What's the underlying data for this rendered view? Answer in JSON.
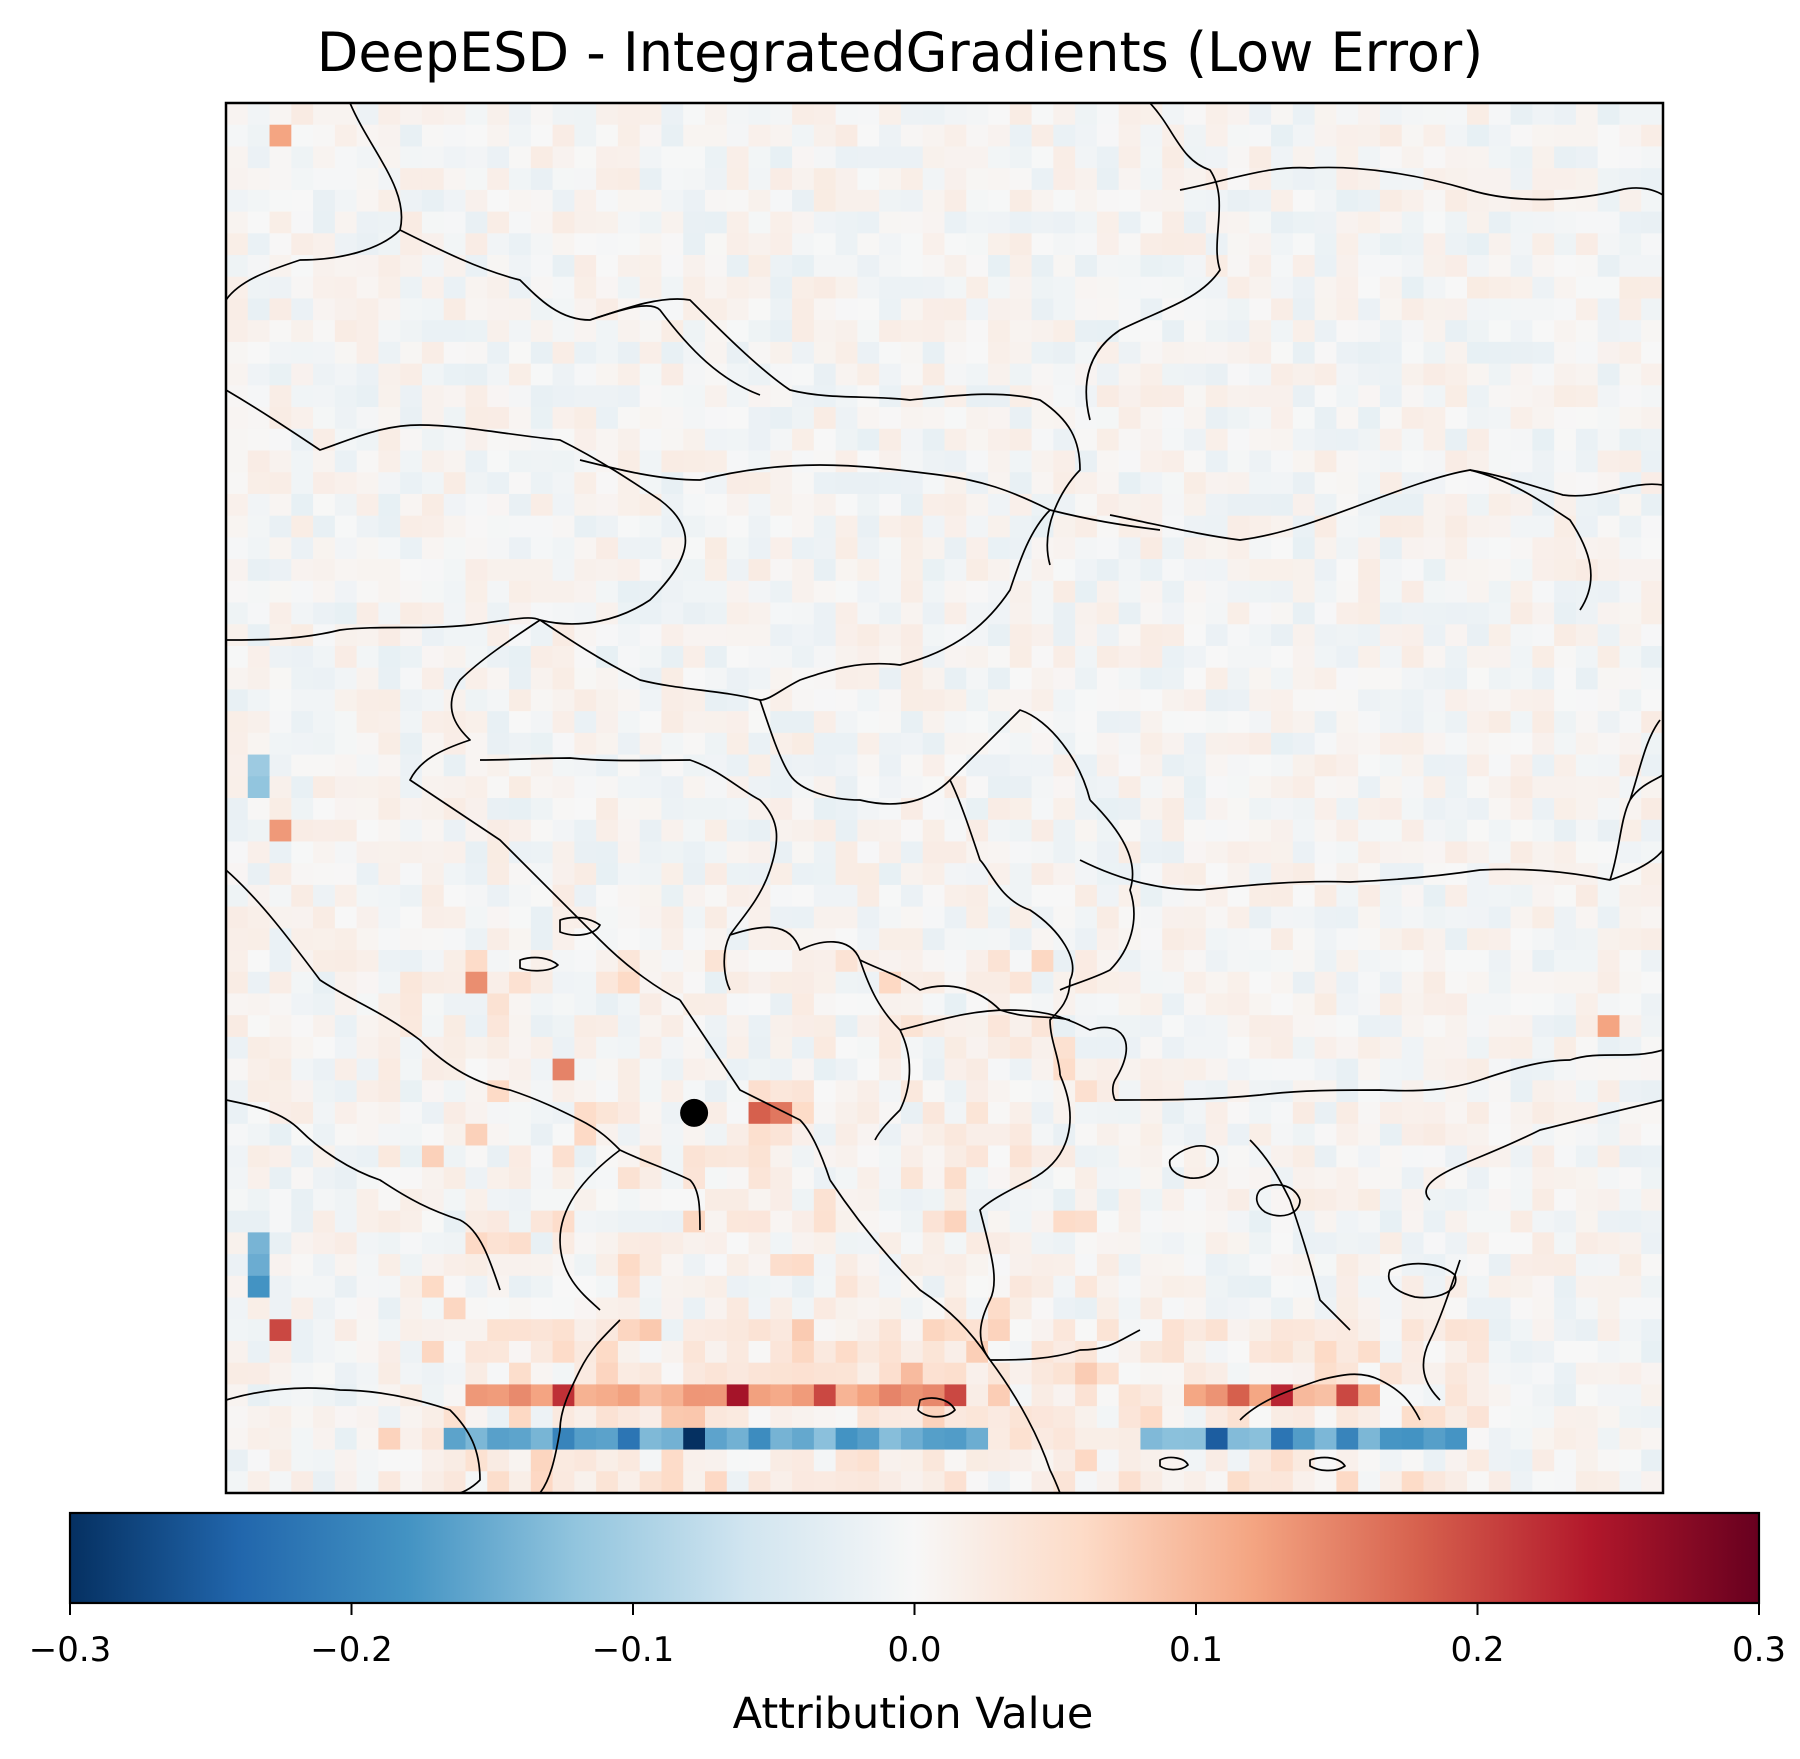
{
  "chart_data": {
    "type": "heatmap",
    "title": "DeepESD - IntegratedGradients (Low Error)",
    "colorbar": {
      "label": "Attribution Value",
      "range": [
        -0.3,
        0.3
      ],
      "ticks": [
        -0.3,
        -0.2,
        -0.1,
        0.0,
        0.1,
        0.2,
        0.3
      ],
      "tick_labels": [
        "−0.3",
        "−0.2",
        "−0.1",
        "0.0",
        "0.1",
        "0.2",
        "0.3"
      ],
      "colormap": "RdBu_r",
      "placement": "bottom"
    },
    "grid": {
      "rows": 64,
      "cols": 66
    },
    "hotspots": [
      {
        "row": 61,
        "col": 21,
        "value": -0.3
      },
      {
        "row": 61,
        "col": 18,
        "value": -0.22
      },
      {
        "row": 61,
        "col": 15,
        "value": -0.2
      },
      {
        "row": 61,
        "col": 24,
        "value": -0.19
      },
      {
        "row": 61,
        "col": 28,
        "value": -0.18
      },
      {
        "row": 61,
        "col": 45,
        "value": -0.25
      },
      {
        "row": 61,
        "col": 48,
        "value": -0.22
      },
      {
        "row": 61,
        "col": 51,
        "value": -0.2
      },
      {
        "row": 61,
        "col": 54,
        "value": -0.18
      },
      {
        "row": 54,
        "col": 1,
        "value": -0.18
      },
      {
        "row": 53,
        "col": 1,
        "value": -0.15
      },
      {
        "row": 52,
        "col": 1,
        "value": -0.14
      },
      {
        "row": 31,
        "col": 1,
        "value": -0.12
      },
      {
        "row": 30,
        "col": 1,
        "value": -0.11
      },
      {
        "row": 56,
        "col": 2,
        "value": 0.2
      },
      {
        "row": 59,
        "col": 15,
        "value": 0.22
      },
      {
        "row": 59,
        "col": 23,
        "value": 0.25
      },
      {
        "row": 59,
        "col": 27,
        "value": 0.2
      },
      {
        "row": 59,
        "col": 33,
        "value": 0.2
      },
      {
        "row": 59,
        "col": 48,
        "value": 0.23
      },
      {
        "row": 59,
        "col": 51,
        "value": 0.2
      },
      {
        "row": 59,
        "col": 46,
        "value": 0.18
      },
      {
        "row": 46,
        "col": 24,
        "value": 0.18
      },
      {
        "row": 46,
        "col": 25,
        "value": 0.16
      },
      {
        "row": 44,
        "col": 15,
        "value": 0.15
      },
      {
        "row": 40,
        "col": 11,
        "value": 0.14
      },
      {
        "row": 33,
        "col": 2,
        "value": 0.13
      },
      {
        "row": 1,
        "col": 2,
        "value": 0.12
      },
      {
        "row": 42,
        "col": 63,
        "value": 0.12
      }
    ],
    "marker": {
      "label": "location",
      "row": 46.5,
      "col": 21.5
    }
  }
}
